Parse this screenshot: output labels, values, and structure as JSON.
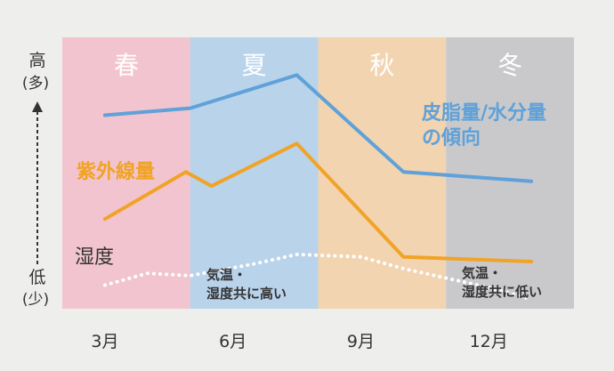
{
  "chart_data": {
    "type": "line",
    "seasons": [
      {
        "name": "春",
        "color": "#f2c4cf"
      },
      {
        "name": "夏",
        "color": "#b9d3eb"
      },
      {
        "name": "秋",
        "color": "#f2d4b1"
      },
      {
        "name": "冬",
        "color": "#c9c9cc"
      }
    ],
    "x_tick_labels": [
      "3月",
      "6月",
      "9月",
      "12月"
    ],
    "y_axis": {
      "high": "高",
      "high_sub": "(多)",
      "low": "低",
      "low_sub": "(少)"
    },
    "series": [
      {
        "name": "皮脂量/水分量",
        "name_line2": "の傾向",
        "color": "#5fa1d8",
        "style": "solid",
        "x": [
          3,
          5,
          7.5,
          10,
          13
        ],
        "y": [
          67,
          70,
          84,
          43,
          39
        ]
      },
      {
        "name": "紫外線量",
        "color": "#f0a326",
        "style": "solid",
        "x": [
          3,
          4.9,
          5.5,
          7.5,
          10,
          13
        ],
        "y": [
          23,
          43,
          37,
          55,
          7,
          5
        ]
      },
      {
        "name": "湿度",
        "color": "#ffffff",
        "style": "dotted",
        "x": [
          3,
          4,
          5,
          6.5,
          7.5,
          9,
          10,
          12,
          13
        ],
        "y": [
          -5,
          0,
          -1,
          4,
          8,
          7,
          2,
          -6,
          -11
        ]
      }
    ],
    "annotations": [
      {
        "lines": [
          "気温・",
          "湿度共に高い"
        ]
      },
      {
        "lines": [
          "気温・",
          "湿度共に低い"
        ]
      }
    ]
  }
}
